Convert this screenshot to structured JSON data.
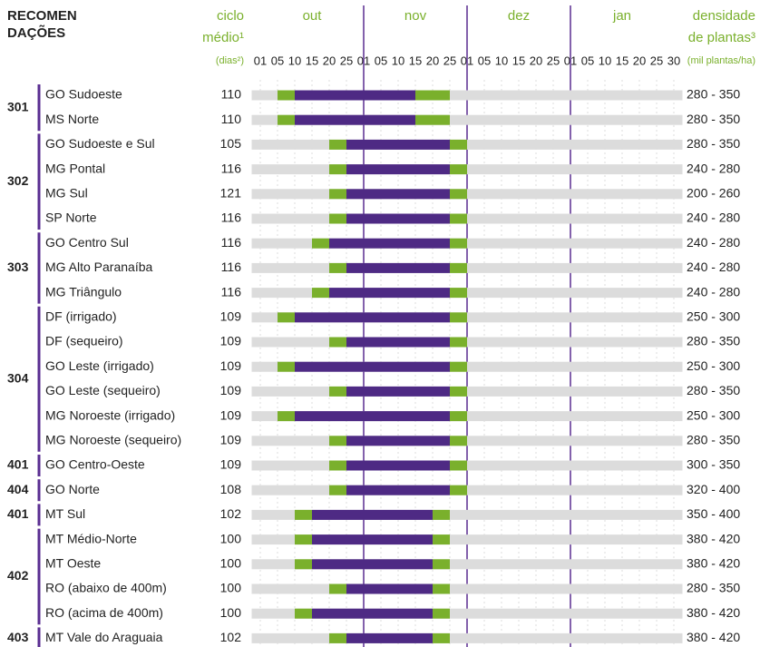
{
  "chart_data": {
    "type": "gantt",
    "header": {
      "recommendations": [
        "RECOMEN",
        "DAÇÕES"
      ],
      "cycle": [
        "ciclo",
        "médio¹",
        "(dias²)"
      ],
      "density": [
        "densidade",
        "de plantas³",
        "(mil plantas/ha)"
      ]
    },
    "months": [
      {
        "value": 3,
        "label": "out"
      },
      {
        "value": 9,
        "label": "nov"
      },
      {
        "value": 15,
        "label": "dez"
      },
      {
        "value": 21,
        "label": "jan"
      }
    ],
    "month_bounds": [
      6,
      12,
      18
    ],
    "xlim": [
      -0.5,
      24.5
    ],
    "xticks": [
      {
        "value": 0,
        "label": "01"
      },
      {
        "value": 1,
        "label": "05"
      },
      {
        "value": 2,
        "label": "10"
      },
      {
        "value": 3,
        "label": "15"
      },
      {
        "value": 4,
        "label": "20"
      },
      {
        "value": 5,
        "label": "25"
      },
      {
        "value": 6,
        "label": "01"
      },
      {
        "value": 7,
        "label": "05"
      },
      {
        "value": 8,
        "label": "10"
      },
      {
        "value": 9,
        "label": "15"
      },
      {
        "value": 10,
        "label": "20"
      },
      {
        "value": 11,
        "label": "25"
      },
      {
        "value": 12,
        "label": "01"
      },
      {
        "value": 13,
        "label": "05"
      },
      {
        "value": 14,
        "label": "10"
      },
      {
        "value": 15,
        "label": "15"
      },
      {
        "value": 16,
        "label": "20"
      },
      {
        "value": 17,
        "label": "25"
      },
      {
        "value": 18,
        "label": "01"
      },
      {
        "value": 19,
        "label": "05"
      },
      {
        "value": 20,
        "label": "10"
      },
      {
        "value": 21,
        "label": "15"
      },
      {
        "value": 22,
        "label": "20"
      },
      {
        "value": 23,
        "label": "25"
      },
      {
        "value": 24,
        "label": "30"
      }
    ],
    "edge_color": "#7ab02c",
    "core_color": "#4e2a84",
    "track_color": "#dcdcdc",
    "bound_color": "#5a2d91",
    "groups": [
      {
        "code": "301",
        "regions": [
          {
            "name": "GO Sudoeste",
            "cycle": 110,
            "density": "280 - 350",
            "early": [
              1,
              2
            ],
            "core": [
              2,
              9
            ],
            "late": [
              9,
              11
            ]
          },
          {
            "name": "MS Norte",
            "cycle": 110,
            "density": "280 - 350",
            "early": [
              1,
              2
            ],
            "core": [
              2,
              9
            ],
            "late": [
              9,
              11
            ]
          }
        ]
      },
      {
        "code": "302",
        "regions": [
          {
            "name": "GO Sudoeste e Sul",
            "cycle": 105,
            "density": "280 - 350",
            "early": [
              4,
              5
            ],
            "core": [
              5,
              11
            ],
            "late": [
              11,
              12
            ]
          },
          {
            "name": "MG Pontal",
            "cycle": 116,
            "density": "240 - 280",
            "early": [
              4,
              5
            ],
            "core": [
              5,
              11
            ],
            "late": [
              11,
              12
            ]
          },
          {
            "name": "MG Sul",
            "cycle": 121,
            "density": "200 - 260",
            "early": [
              4,
              5
            ],
            "core": [
              5,
              11
            ],
            "late": [
              11,
              12
            ]
          },
          {
            "name": "SP Norte",
            "cycle": 116,
            "density": "240 - 280",
            "early": [
              4,
              5
            ],
            "core": [
              5,
              11
            ],
            "late": [
              11,
              12
            ]
          }
        ]
      },
      {
        "code": "303",
        "regions": [
          {
            "name": "GO Centro Sul",
            "cycle": 116,
            "density": "240 - 280",
            "early": [
              3,
              4
            ],
            "core": [
              4,
              11
            ],
            "late": [
              11,
              12
            ]
          },
          {
            "name": "MG Alto Paranaíba",
            "cycle": 116,
            "density": "240 - 280",
            "early": [
              4,
              5
            ],
            "core": [
              5,
              11
            ],
            "late": [
              11,
              12
            ]
          },
          {
            "name": "MG Triângulo",
            "cycle": 116,
            "density": "240 - 280",
            "early": [
              3,
              4
            ],
            "core": [
              4,
              11
            ],
            "late": [
              11,
              12
            ]
          }
        ]
      },
      {
        "code": "304",
        "regions": [
          {
            "name": "DF (irrigado)",
            "cycle": 109,
            "density": "250 - 300",
            "early": [
              1,
              2
            ],
            "core": [
              2,
              11
            ],
            "late": [
              11,
              12
            ]
          },
          {
            "name": "DF (sequeiro)",
            "cycle": 109,
            "density": "280 - 350",
            "early": [
              4,
              5
            ],
            "core": [
              5,
              11
            ],
            "late": [
              11,
              12
            ]
          },
          {
            "name": "GO Leste (irrigado)",
            "cycle": 109,
            "density": "250 - 300",
            "early": [
              1,
              2
            ],
            "core": [
              2,
              11
            ],
            "late": [
              11,
              12
            ]
          },
          {
            "name": "GO Leste (sequeiro)",
            "cycle": 109,
            "density": "280 - 350",
            "early": [
              4,
              5
            ],
            "core": [
              5,
              11
            ],
            "late": [
              11,
              12
            ]
          },
          {
            "name": "MG Noroeste (irrigado)",
            "cycle": 109,
            "density": "250 - 300",
            "early": [
              1,
              2
            ],
            "core": [
              2,
              11
            ],
            "late": [
              11,
              12
            ]
          },
          {
            "name": "MG Noroeste (sequeiro)",
            "cycle": 109,
            "density": "280 - 350",
            "early": [
              4,
              5
            ],
            "core": [
              5,
              11
            ],
            "late": [
              11,
              12
            ]
          }
        ]
      },
      {
        "code": "401",
        "regions": [
          {
            "name": "GO Centro-Oeste",
            "cycle": 109,
            "density": "300 - 350",
            "early": [
              4,
              5
            ],
            "core": [
              5,
              11
            ],
            "late": [
              11,
              12
            ]
          }
        ]
      },
      {
        "code": "404",
        "regions": [
          {
            "name": "GO Norte",
            "cycle": 108,
            "density": "320 - 400",
            "early": [
              4,
              5
            ],
            "core": [
              5,
              11
            ],
            "late": [
              11,
              12
            ]
          }
        ]
      },
      {
        "code": "401",
        "regions": [
          {
            "name": "MT Sul",
            "cycle": 102,
            "density": "350 - 400",
            "early": [
              2,
              3
            ],
            "core": [
              3,
              10
            ],
            "late": [
              10,
              11
            ]
          }
        ]
      },
      {
        "code": "402",
        "regions": [
          {
            "name": "MT Médio-Norte",
            "cycle": 100,
            "density": "380 - 420",
            "early": [
              2,
              3
            ],
            "core": [
              3,
              10
            ],
            "late": [
              10,
              11
            ]
          },
          {
            "name": "MT Oeste",
            "cycle": 100,
            "density": "380 - 420",
            "early": [
              2,
              3
            ],
            "core": [
              3,
              10
            ],
            "late": [
              10,
              11
            ]
          },
          {
            "name": "RO (abaixo de 400m)",
            "cycle": 100,
            "density": "280 - 350",
            "early": [
              4,
              5
            ],
            "core": [
              5,
              10
            ],
            "late": [
              10,
              11
            ]
          },
          {
            "name": "RO (acima de 400m)",
            "cycle": 100,
            "density": "380 - 420",
            "early": [
              2,
              3
            ],
            "core": [
              3,
              10
            ],
            "late": [
              10,
              11
            ]
          }
        ]
      },
      {
        "code": "403",
        "regions": [
          {
            "name": "MT Vale do Araguaia",
            "cycle": 102,
            "density": "380 - 420",
            "early": [
              4,
              5
            ],
            "core": [
              5,
              10
            ],
            "late": [
              10,
              11
            ]
          }
        ]
      }
    ]
  }
}
